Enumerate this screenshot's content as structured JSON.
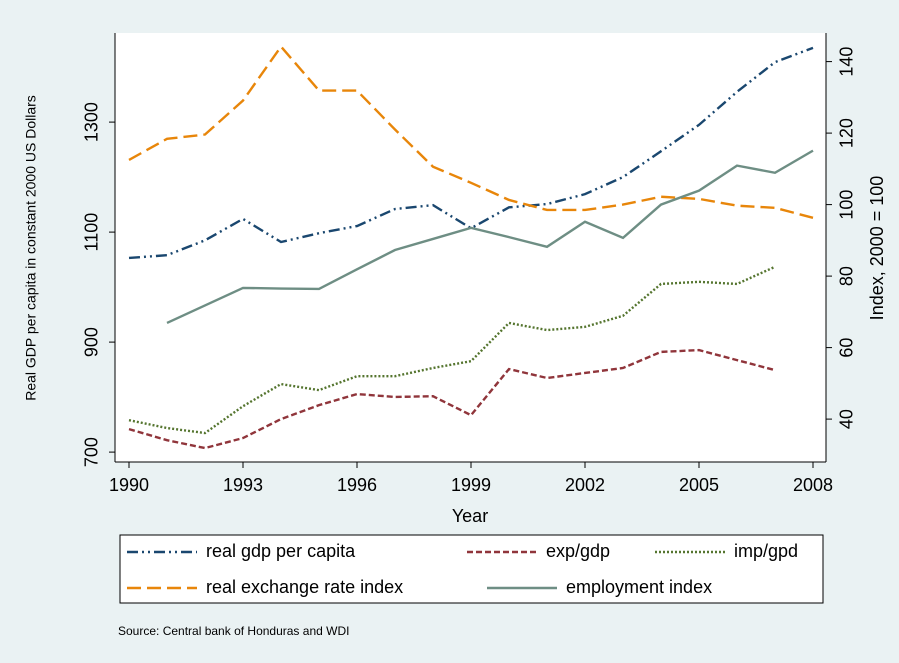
{
  "chart_data": {
    "type": "line",
    "x": [
      1990,
      1991,
      1992,
      1993,
      1994,
      1995,
      1996,
      1997,
      1998,
      1999,
      2000,
      2001,
      2002,
      2003,
      2004,
      2005,
      2006,
      2007,
      2008
    ],
    "xlabel": "Year",
    "ylabel": "Real GDP per capita in constant 2000 US Dollars",
    "y2label": "Index, 2000 = 100",
    "xlim": [
      1990,
      2008
    ],
    "xticks": [
      1990,
      1993,
      1996,
      1999,
      2002,
      2005,
      2008
    ],
    "ylim": [
      682,
      1462
    ],
    "yticks": [
      700,
      900,
      1100,
      1300
    ],
    "y2lim": [
      28,
      148
    ],
    "y2ticks": [
      40,
      60,
      80,
      100,
      120,
      140
    ],
    "note": "Source: Central bank of Honduras and WDI",
    "series": [
      {
        "name": "real gdp per capita",
        "color": "#1a476f",
        "dash": "11 4 2 4 2 4",
        "values": [
          1053,
          1058,
          1085,
          1124,
          1082,
          1098,
          1111,
          1142,
          1149,
          1107,
          1145,
          1151,
          1169,
          1200,
          1247,
          1295,
          1355,
          1409,
          1435
        ]
      },
      {
        "name": "exp/gdp",
        "color": "#90353b",
        "dash": "6 3",
        "axis": "y2",
        "values": [
          37.2,
          34.1,
          31.9,
          34.7,
          40,
          43.9,
          47,
          46.2,
          46.4,
          41.1,
          54,
          51.5,
          52.9,
          54.3,
          58.8,
          59.3,
          56.5,
          53.7,
          null
        ]
      },
      {
        "name": "imp/gpd",
        "color": "#55752f",
        "dash": "2 2",
        "axis": "y2",
        "values": [
          39.7,
          37.5,
          36.1,
          43.6,
          49.8,
          48.1,
          52,
          52,
          54.3,
          56.2,
          66.9,
          64.9,
          65.8,
          68.9,
          77.8,
          78.4,
          77.8,
          82.6,
          null
        ]
      },
      {
        "name": "real exchange rate index",
        "color": "#e8860a",
        "dash": "14 6",
        "axis": "y2",
        "values": [
          112.5,
          118.4,
          119.6,
          129.1,
          144.2,
          131.9,
          131.9,
          121,
          110.6,
          106.1,
          101.3,
          98.5,
          98.5,
          100,
          102.2,
          101.6,
          99.7,
          99.1,
          96.3
        ]
      },
      {
        "name": "employment index",
        "color": "#6e8e84",
        "dash": "none",
        "axis": "y2",
        "values": [
          null,
          66.9,
          71.8,
          76.7,
          76.5,
          76.4,
          81.9,
          87.3,
          90.4,
          93.5,
          90.9,
          88.2,
          95.2,
          90.7,
          100,
          103.9,
          110.9,
          108.9,
          115.1
        ]
      }
    ]
  }
}
